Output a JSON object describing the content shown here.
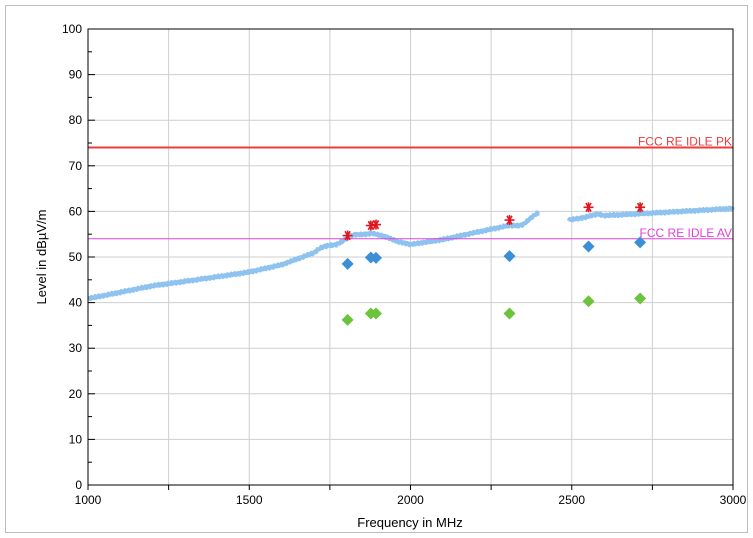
{
  "chart_data": {
    "type": "scatter",
    "xlabel": "Frequency in MHz",
    "ylabel": "Level in dBµV/m",
    "xlim": [
      1000,
      3000
    ],
    "ylim": [
      0,
      100
    ],
    "x_ticks": [
      1000,
      1500,
      2000,
      2500,
      3000
    ],
    "y_ticks": [
      0,
      10,
      20,
      30,
      40,
      50,
      60,
      70,
      80,
      90,
      100
    ],
    "grid": true,
    "limit_lines": [
      {
        "name": "FCC RE IDLE PK",
        "y": 74,
        "color": "#ee3b3b"
      },
      {
        "name": "FCC RE IDLE AV",
        "y": 54,
        "color": "#e040e0"
      }
    ],
    "trace": {
      "color": "#8fc3ef",
      "segments": [
        {
          "x": [
            1000,
            1100,
            1200,
            1300,
            1400,
            1500,
            1600,
            1700,
            1750,
            1800,
            1850,
            1880,
            1920,
            1960,
            2000,
            2100,
            2200,
            2300,
            2350,
            2400
          ],
          "y": [
            41,
            42.5,
            44,
            45,
            46,
            47,
            48.5,
            51,
            52.5,
            54,
            55,
            55.5,
            54.5,
            53,
            52.5,
            53.5,
            55,
            56.5,
            57.5,
            59.5
          ]
        },
        {
          "x": [
            2490,
            2550,
            2600,
            2700,
            2800,
            2900,
            3000
          ],
          "y": [
            58.5,
            59,
            59,
            59.5,
            60,
            60.5,
            61
          ]
        }
      ]
    },
    "series": [
      {
        "marker": "star",
        "color": "#e5141c",
        "x": [
          1805,
          1877,
          1893,
          2307,
          2552,
          2712
        ],
        "y": [
          54.7,
          56.9,
          57.1,
          58.1,
          60.9,
          60.9
        ]
      },
      {
        "marker": "diamond",
        "color": "#3b8fd6",
        "x": [
          1805,
          1877,
          1893,
          2307,
          2552,
          2712
        ],
        "y": [
          48.5,
          49.9,
          49.8,
          50.2,
          52.3,
          53.2
        ]
      },
      {
        "marker": "diamond",
        "color": "#6cc33c",
        "x": [
          1805,
          1877,
          1893,
          2307,
          2552,
          2712
        ],
        "y": [
          36.2,
          37.6,
          37.6,
          37.6,
          40.3,
          40.9
        ]
      }
    ]
  }
}
